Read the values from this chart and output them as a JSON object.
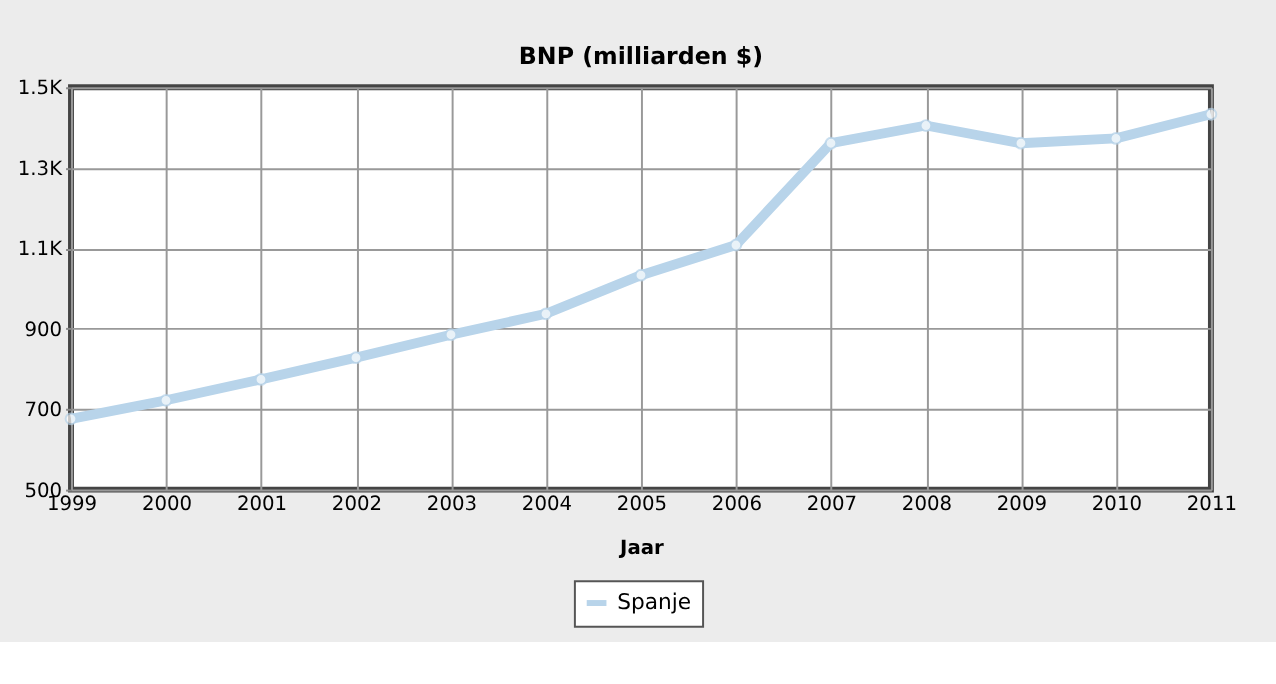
{
  "chart_data": {
    "type": "line",
    "title": "BNP (milliarden $)",
    "xlabel": "Jaar",
    "x": [
      1999,
      2000,
      2001,
      2002,
      2003,
      2004,
      2005,
      2006,
      2007,
      2008,
      2009,
      2010,
      2011
    ],
    "series": [
      {
        "name": "Spanje",
        "color": "#b8d4ea",
        "values": [
          676,
          722,
          774,
          828,
          885,
          937,
          1033,
          1108,
          1361,
          1405,
          1361,
          1373,
          1433
        ]
      }
    ],
    "xlim": [
      1999,
      2011
    ],
    "xticks": [
      1999,
      2000,
      2001,
      2002,
      2003,
      2004,
      2005,
      2006,
      2007,
      2008,
      2009,
      2010,
      2011
    ],
    "ylim": [
      500,
      1500
    ],
    "yticks": [
      500,
      700,
      900,
      {
        "value": 1100,
        "label": "1.1K"
      },
      {
        "value": 1300,
        "label": "1.3K"
      },
      {
        "value": 1500,
        "label": "1.5K"
      }
    ],
    "grid": true,
    "legend": "bottom",
    "marker": "circle",
    "line_style": "solid"
  }
}
